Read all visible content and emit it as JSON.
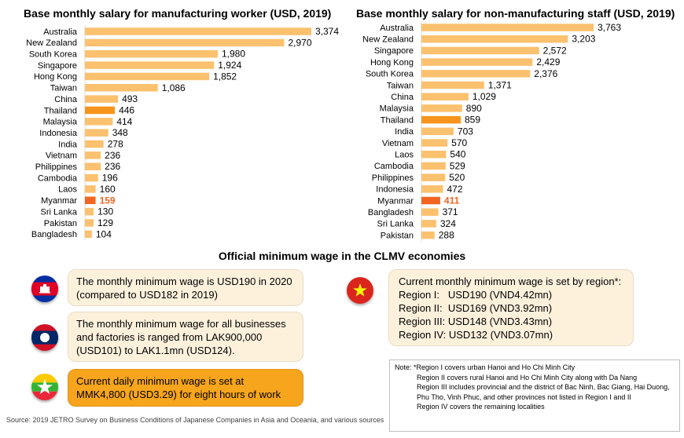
{
  "chart_data": [
    {
      "type": "bar",
      "orientation": "horizontal",
      "title": "Base monthly salary for manufacturing worker (USD, 2019)",
      "categories": [
        "Australia",
        "New Zealand",
        "South Korea",
        "Singapore",
        "Hong Kong",
        "Taiwan",
        "China",
        "Thailand",
        "Malaysia",
        "Indonesia",
        "India",
        "Vietnam",
        "Philippines",
        "Cambodia",
        "Laos",
        "Myanmar",
        "Sri Lanka",
        "Pakistan",
        "Bangladesh"
      ],
      "values": [
        3374,
        2970,
        1980,
        1924,
        1852,
        1086,
        493,
        446,
        414,
        348,
        278,
        236,
        236,
        196,
        160,
        159,
        130,
        129,
        104
      ],
      "value_labels": [
        "3,374",
        "2,970",
        "1,980",
        "1,924",
        "1,852",
        "1,086",
        "493",
        "446",
        "414",
        "348",
        "278",
        "236",
        "236",
        "196",
        "160",
        "159",
        "130",
        "129",
        "104"
      ],
      "highlight": {
        "Thailand": "#f7941d",
        "Myanmar": "#f26522"
      },
      "bar_color": "#fbc16e",
      "xlim": [
        0,
        3374
      ]
    },
    {
      "type": "bar",
      "orientation": "horizontal",
      "title": "Base monthly salary for non-manufacturing staff (USD, 2019)",
      "categories": [
        "Australia",
        "New Zealand",
        "Singapore",
        "Hong Kong",
        "South Korea",
        "Taiwan",
        "China",
        "Malaysia",
        "Thailand",
        "India",
        "Vietnam",
        "Laos",
        "Cambodia",
        "Philippines",
        "Indonesia",
        "Myanmar",
        "Bangladesh",
        "Sri Lanka",
        "Pakistan"
      ],
      "values": [
        3763,
        3203,
        2572,
        2429,
        2376,
        1371,
        1029,
        890,
        859,
        703,
        570,
        540,
        529,
        520,
        472,
        411,
        371,
        324,
        288
      ],
      "value_labels": [
        "3,763",
        "3,203",
        "2,572",
        "2,429",
        "2,376",
        "1,371",
        "1,029",
        "890",
        "859",
        "703",
        "570",
        "540",
        "529",
        "520",
        "472",
        "411",
        "371",
        "324",
        "288"
      ],
      "highlight": {
        "Thailand": "#f7941d",
        "Myanmar": "#f26522"
      },
      "bar_color": "#fbc16e",
      "xlim": [
        0,
        3763
      ]
    }
  ],
  "section_title": "Official minimum wage in the CLMV economies",
  "cambodia_text": "The monthly minimum wage is USD190 in 2020 (compared to USD182 in 2019)",
  "laos_text": "The monthly minimum wage for all businesses and factories is ranged from LAK900,000 (USD101) to LAK1.1mn (USD124).",
  "myanmar_text": "Current daily minimum wage is set at MMK4,800 (USD3.29) for eight hours of work",
  "vietnam": {
    "intro": "Current monthly minimum wage is set by region*:",
    "regions": [
      "Region I:   USD190 (VND4.42mn)",
      "Region II:  USD169 (VND3.92mn)",
      "Region III: USD148 (VND3.43mn)",
      "Region IV: USD132 (VND3.07mn)"
    ]
  },
  "note": {
    "first": "Note: *Region I covers urban Hanoi and Ho Chi Minh City",
    "lines": [
      "Region II covers rural Hanoi and Ho Chi Minh City along with Da Nang",
      "Region III includes provincial and the district of Bac Ninh, Bac Giang, Hai Duong, Phu Tho, Vinh Phuc, and other provinces not listed in Region I and II",
      "Region IV covers the remaining  localities"
    ]
  },
  "source": "Source: 2019 JETRO Survey on Business Conditions of Japanese Companies in Asia and Oceania, and various sources",
  "colors": {
    "accent_orange": "#f7a51c",
    "cream": "#fdf1dc",
    "myanmar_label": "#f26522"
  }
}
